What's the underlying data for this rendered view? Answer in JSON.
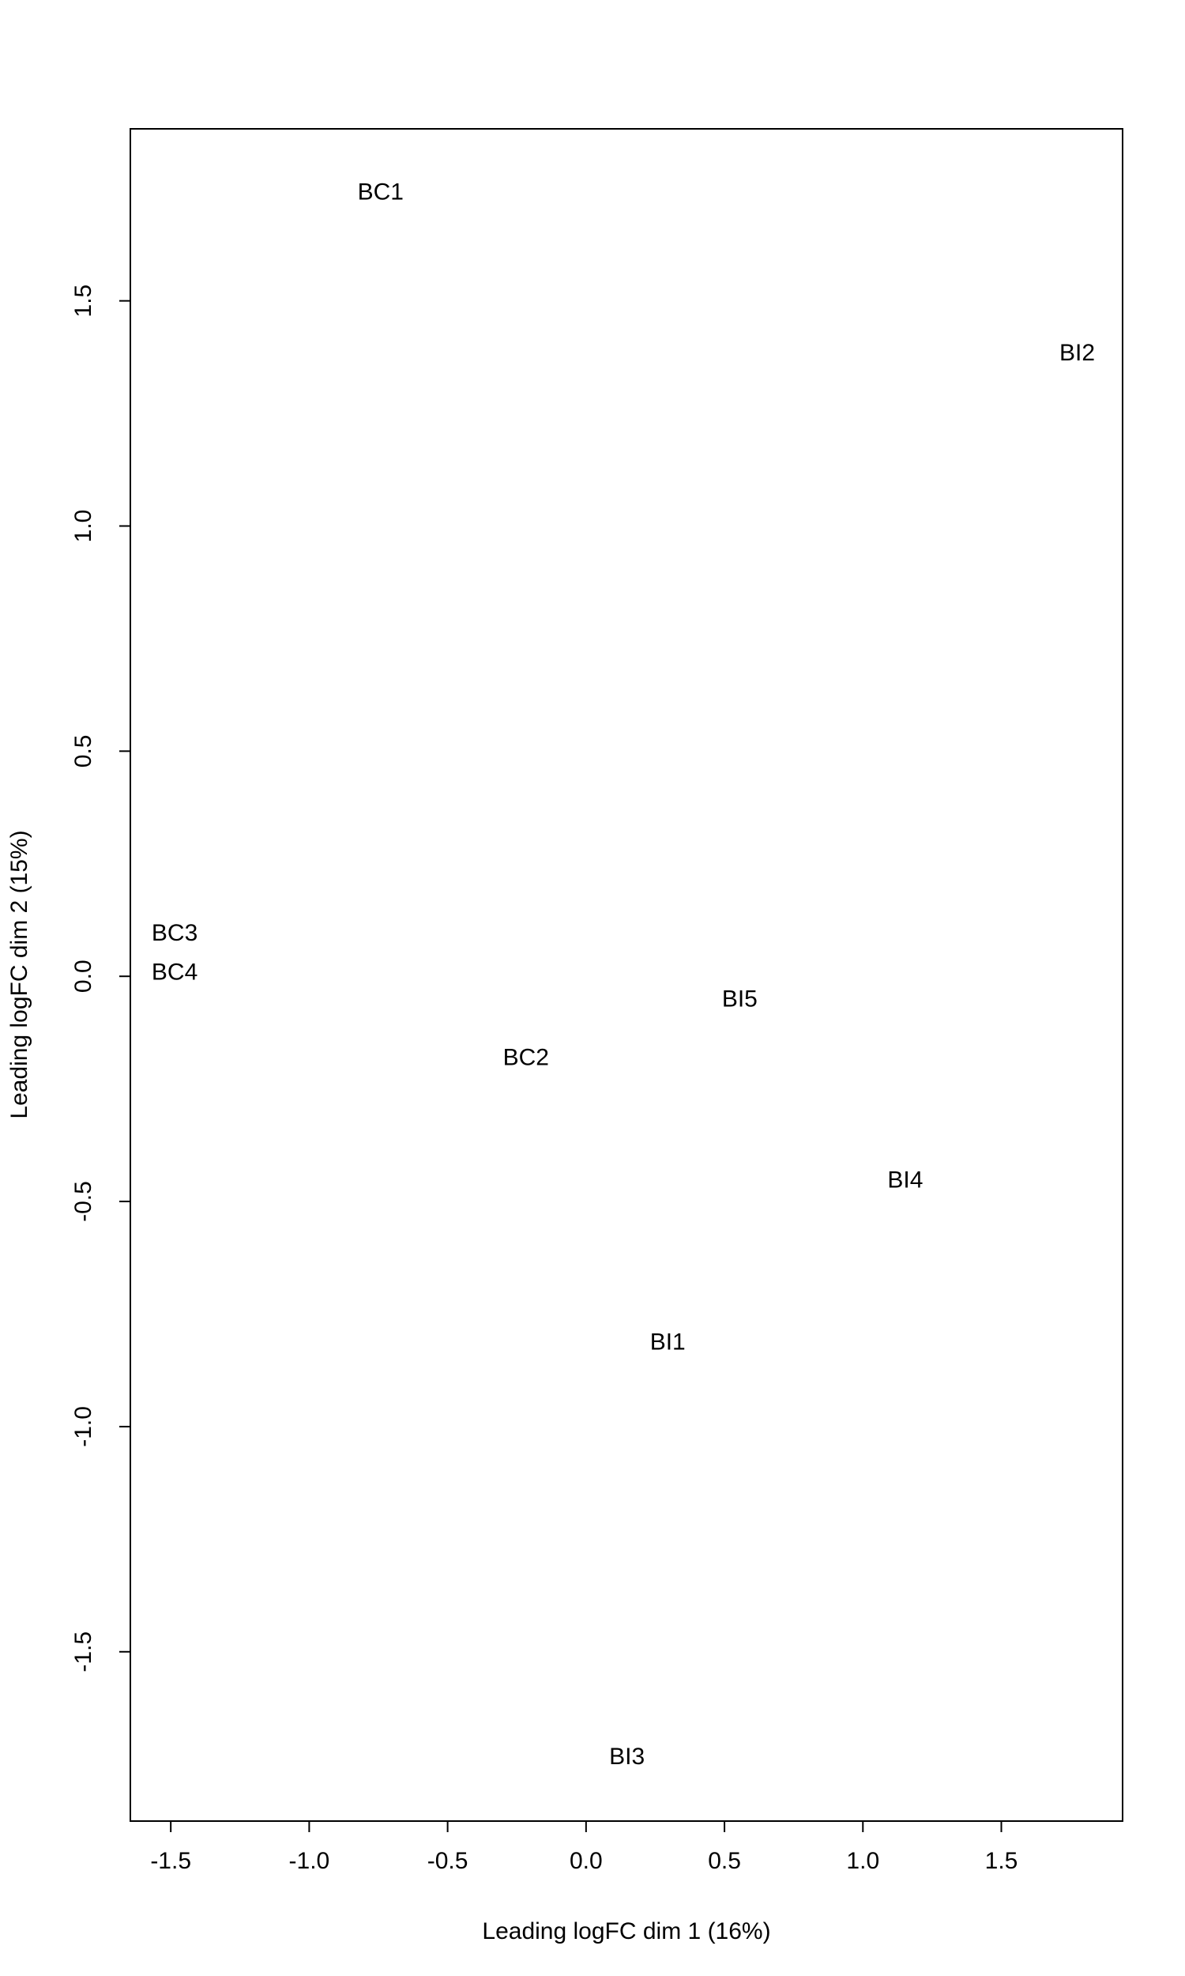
{
  "chart_data": {
    "type": "scatter",
    "x_label": "Leading logFC dim 1 (16%)",
    "y_label": "Leading logFC dim 2 (15%)",
    "labels": [
      "BC1",
      "BI2",
      "BC3",
      "BC4",
      "BI5",
      "BC2",
      "BI4",
      "BI1",
      "BI3"
    ],
    "x": [
      -0.742,
      1.774,
      -1.486,
      -1.486,
      0.555,
      -0.217,
      1.153,
      0.295,
      0.148
    ],
    "y": [
      1.739,
      1.382,
      0.093,
      0.006,
      -0.053,
      -0.183,
      -0.455,
      -0.815,
      -1.736
    ],
    "xlim": [
      -1.646,
      1.938
    ],
    "ylim": [
      -1.876,
      1.882
    ],
    "xticks": [
      -1.5,
      {
        "value": -1,
        "label": "-1.0"
      },
      -0.5,
      {
        "value": 0,
        "label": "0.0"
      },
      0.5,
      {
        "value": 1,
        "label": "1.0"
      },
      1.5
    ],
    "yticks": [
      -1.5,
      {
        "value": -1,
        "label": "-1.0"
      },
      -0.5,
      {
        "value": 0,
        "label": "0.0"
      },
      0.5,
      {
        "value": 1,
        "label": "1.0"
      },
      1.5
    ],
    "grid": false
  }
}
